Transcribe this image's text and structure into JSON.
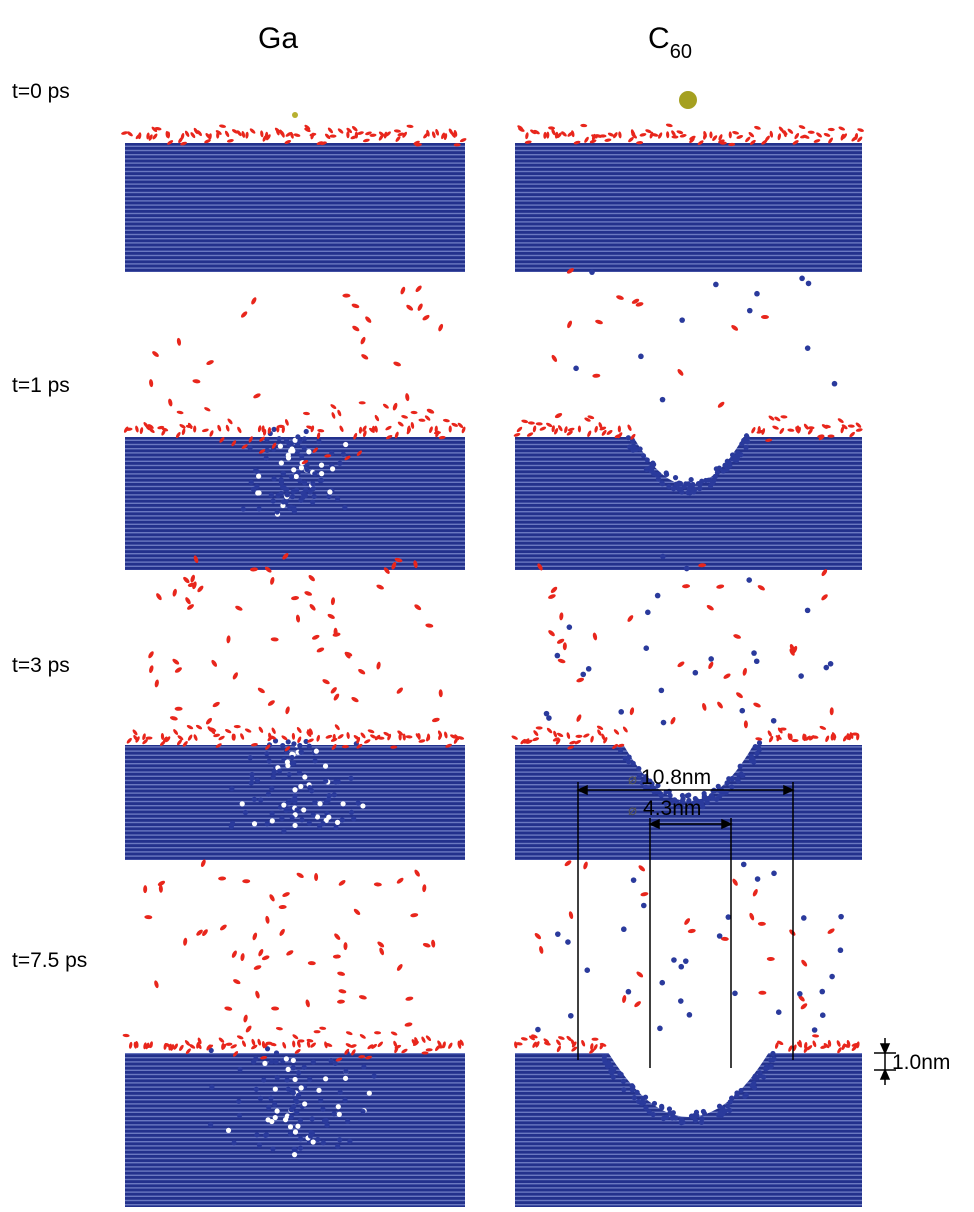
{
  "columns": {
    "left": "Ga",
    "right": {
      "base": "C",
      "sub": "60"
    }
  },
  "rows": [
    "t=0 ps",
    "t=1 ps",
    "t=3 ps",
    "t=7.5 ps"
  ],
  "annotations": {
    "diameter_symbol": "⌀",
    "outer_diameter": "10.8nm",
    "inner_diameter": "4.3nm",
    "depth": "1.0nm"
  }
}
